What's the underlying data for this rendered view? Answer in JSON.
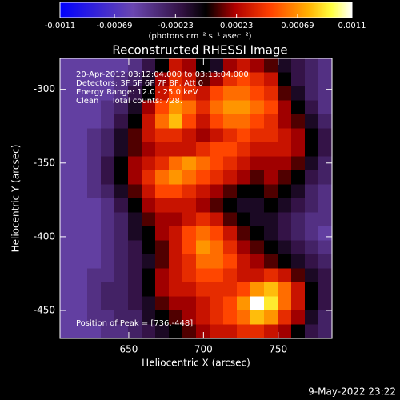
{
  "chart_data": {
    "type": "heatmap",
    "title": "Reconstructed RHESSI Image",
    "x_label": "Heliocentric X (arcsec)",
    "y_label": "Heliocentric Y (arcsec)",
    "colorbar_label": "(photons cm⁻² s⁻¹ asec⁻²)",
    "clim": [
      -0.0011,
      0.0011
    ],
    "cbar_ticks": [
      -0.0011,
      -0.00069,
      -0.00023,
      0.00023,
      0.00069,
      0.0011
    ],
    "colorscale": [
      [
        0,
        "#0000ff"
      ],
      [
        0.25,
        "#6a46b0"
      ],
      [
        0.42,
        "#301040"
      ],
      [
        0.5,
        "#000000"
      ],
      [
        0.6,
        "#b00000"
      ],
      [
        0.72,
        "#ff4000"
      ],
      [
        0.85,
        "#ffb000"
      ],
      [
        0.93,
        "#ffff40"
      ],
      [
        1,
        "#ffffff"
      ]
    ],
    "xlim": [
      604,
      786
    ],
    "ylim": [
      -469,
      -279
    ],
    "xticks": [
      650,
      700,
      750
    ],
    "yticks": [
      -300,
      -350,
      -400,
      -450
    ],
    "annotations": [
      "20-Apr-2012 03:12:04.000 to 03:13:04.000",
      "Detectors: 3F 5F 6F 7F 8F, Att 0",
      "Energy Range: 12.0 - 25.0 keV",
      "Clean     Total counts: 728."
    ],
    "peak_label": "Position of Peak = [736,-448]",
    "timestamp": "9-May-2022 23:22",
    "z": [
      [
        -0.0005,
        -0.0005,
        -0.0005,
        -0.0005,
        -0.0005,
        -0.0004,
        -0.0002,
        0,
        0.0003,
        0.0002,
        0,
        -0.0001,
        0.0002,
        0.0003,
        0.0002,
        0.0001,
        -0.0001,
        -0.0002,
        -0.0003,
        -0.0004
      ],
      [
        -0.0005,
        -0.0005,
        -0.0005,
        -0.0005,
        -0.0004,
        -0.0003,
        -0.0001,
        0.0002,
        0.0004,
        0.0003,
        0.0001,
        0.0002,
        0.0004,
        0.0005,
        0.0004,
        0.0003,
        0,
        -0.0002,
        -0.0003,
        -0.0004
      ],
      [
        -0.0005,
        -0.0005,
        -0.0005,
        -0.0005,
        -0.0004,
        -0.0002,
        0,
        0.0003,
        0.0005,
        0.0004,
        0.0003,
        0.0005,
        0.0006,
        0.0006,
        0.0005,
        0.0004,
        0.0001,
        -0.0001,
        -0.0003,
        -0.0004
      ],
      [
        -0.0005,
        -0.0005,
        -0.0005,
        -0.0004,
        -0.0003,
        -0.0001,
        0.0002,
        0.0005,
        0.0007,
        0.0006,
        0.0004,
        0.0006,
        0.0007,
        0.0007,
        0.0006,
        0.0005,
        0.0002,
        0,
        -0.0002,
        -0.0004
      ],
      [
        -0.0005,
        -0.0005,
        -0.0005,
        -0.0004,
        -0.0002,
        0,
        0.0003,
        0.0006,
        0.0008,
        0.0005,
        0.0003,
        0.0005,
        0.0006,
        0.0006,
        0.0005,
        0.0004,
        0.0002,
        0.0001,
        -0.0001,
        -0.0003
      ],
      [
        -0.0005,
        -0.0005,
        -0.0004,
        -0.0003,
        -0.0001,
        0.0001,
        0.0003,
        0.0004,
        0.0004,
        0.0003,
        0.0002,
        0.0003,
        0.0004,
        0.0005,
        0.0004,
        0.0004,
        0.0003,
        0.0002,
        0,
        -0.0002
      ],
      [
        -0.0005,
        -0.0005,
        -0.0004,
        -0.0003,
        -0.0001,
        0.0001,
        0.0002,
        0.0003,
        0.0003,
        0.0003,
        0.0004,
        0.0005,
        0.0005,
        0.0004,
        0.0003,
        0.0003,
        0.0003,
        0.0002,
        0,
        -0.0002
      ],
      [
        -0.0005,
        -0.0005,
        -0.0004,
        -0.0002,
        0,
        0.0002,
        0.0003,
        0.0004,
        0.0006,
        0.0007,
        0.0006,
        0.0005,
        0.0004,
        0.0003,
        0.0002,
        0.0002,
        0.0002,
        0.0001,
        -0.0001,
        -0.0003
      ],
      [
        -0.0005,
        -0.0005,
        -0.0004,
        -0.0002,
        0,
        0.0002,
        0.0004,
        0.0006,
        0.0007,
        0.0006,
        0.0005,
        0.0004,
        0.0003,
        0.0002,
        0.0001,
        0.0002,
        0.0001,
        0,
        -0.0002,
        -0.0003
      ],
      [
        -0.0005,
        -0.0005,
        -0.0004,
        -0.0003,
        -0.0001,
        0.0001,
        0.0003,
        0.0005,
        0.0005,
        0.0004,
        0.0003,
        0.0002,
        0.0001,
        0,
        0,
        0.0001,
        0,
        -0.0001,
        -0.0003,
        -0.0004
      ],
      [
        -0.0005,
        -0.0005,
        -0.0005,
        -0.0004,
        -0.0002,
        0,
        0.0002,
        0.0003,
        0.0003,
        0.0003,
        0.0002,
        0.0001,
        0,
        -0.0001,
        -0.0001,
        0,
        -0.0001,
        -0.0002,
        -0.0003,
        -0.0004
      ],
      [
        -0.0005,
        -0.0005,
        -0.0005,
        -0.0004,
        -0.0003,
        -0.0001,
        0.0001,
        0.0002,
        0.0002,
        0.0003,
        0.0004,
        0.0003,
        0.0001,
        0,
        -0.0001,
        -0.0001,
        -0.0002,
        -0.0003,
        -0.0004,
        -0.0004
      ],
      [
        -0.0005,
        -0.0005,
        -0.0005,
        -0.0004,
        -0.0003,
        -0.0001,
        0,
        0.0002,
        0.0003,
        0.0005,
        0.0006,
        0.0005,
        0.0003,
        0.0001,
        0,
        -0.0001,
        -0.0002,
        -0.0003,
        -0.0004,
        -0.0005
      ],
      [
        -0.0005,
        -0.0005,
        -0.0005,
        -0.0004,
        -0.0003,
        -0.0002,
        0,
        0.0001,
        0.0003,
        0.0005,
        0.0007,
        0.0006,
        0.0004,
        0.0002,
        0.0001,
        0,
        -0.0001,
        -0.0002,
        -0.0003,
        -0.0004
      ],
      [
        -0.0005,
        -0.0005,
        -0.0005,
        -0.0004,
        -0.0003,
        -0.0002,
        -0.0001,
        0.0001,
        0.0003,
        0.0004,
        0.0006,
        0.0006,
        0.0005,
        0.0003,
        0.0002,
        0.0001,
        0,
        -0.0001,
        -0.0002,
        -0.0003
      ],
      [
        -0.0005,
        -0.0005,
        -0.0004,
        -0.0004,
        -0.0003,
        -0.0002,
        0,
        0.0002,
        0.0003,
        0.0004,
        0.0005,
        0.0005,
        0.0004,
        0.0003,
        0.0003,
        0.0004,
        0.0003,
        0.0001,
        -0.0001,
        -0.0002
      ],
      [
        -0.0005,
        -0.0005,
        -0.0004,
        -0.0003,
        -0.0003,
        -0.0002,
        0,
        0.0002,
        0.0003,
        0.0003,
        0.0004,
        0.0004,
        0.0004,
        0.0005,
        0.0007,
        0.0008,
        0.0006,
        0.0003,
        0,
        -0.0002
      ],
      [
        -0.0005,
        -0.0005,
        -0.0004,
        -0.0003,
        -0.0003,
        -0.0002,
        -0.0001,
        0.0001,
        0.0002,
        0.0002,
        0.0003,
        0.0004,
        0.0005,
        0.0007,
        0.0011,
        0.0009,
        0.0006,
        0.0003,
        0,
        -0.0002
      ],
      [
        -0.0005,
        -0.0005,
        -0.0004,
        -0.0004,
        -0.0003,
        -0.0003,
        -0.0001,
        0,
        0.0001,
        0.0002,
        0.0003,
        0.0004,
        0.0005,
        0.0006,
        0.0008,
        0.0007,
        0.0004,
        0.0002,
        -0.0001,
        -0.0003
      ],
      [
        -0.0005,
        -0.0005,
        -0.0005,
        -0.0004,
        -0.0004,
        -0.0003,
        -0.0002,
        -0.0001,
        0,
        0.0001,
        0.0002,
        0.0003,
        0.0003,
        0.0004,
        0.0004,
        0.0003,
        0.0002,
        0,
        -0.0002,
        -0.0003
      ]
    ]
  }
}
